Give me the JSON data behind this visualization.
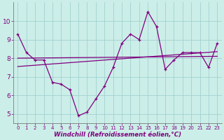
{
  "x": [
    0,
    1,
    2,
    3,
    4,
    5,
    6,
    7,
    8,
    9,
    10,
    11,
    12,
    13,
    14,
    15,
    16,
    17,
    18,
    19,
    20,
    21,
    22,
    23
  ],
  "y_main": [
    9.3,
    8.3,
    7.9,
    7.9,
    6.7,
    6.6,
    6.3,
    4.9,
    5.1,
    5.8,
    6.5,
    7.5,
    8.8,
    9.3,
    9.0,
    10.5,
    9.7,
    7.4,
    7.9,
    8.3,
    8.3,
    8.3,
    7.5,
    8.8
  ],
  "y_line1_start": 8.0,
  "y_line1_end": 8.1,
  "y_line2_start": 7.55,
  "y_line2_end": 8.35,
  "line_color": "#800080",
  "bg_color": "#cceee8",
  "grid_color": "#99cccc",
  "xlabel": "Windchill (Refroidissement éolien,°C)",
  "ylim": [
    4.5,
    11.0
  ],
  "xlim": [
    -0.5,
    23.5
  ],
  "yticks": [
    5,
    6,
    7,
    8,
    9,
    10
  ],
  "xticks": [
    0,
    1,
    2,
    3,
    4,
    5,
    6,
    7,
    8,
    9,
    10,
    11,
    12,
    13,
    14,
    15,
    16,
    17,
    18,
    19,
    20,
    21,
    22,
    23
  ]
}
